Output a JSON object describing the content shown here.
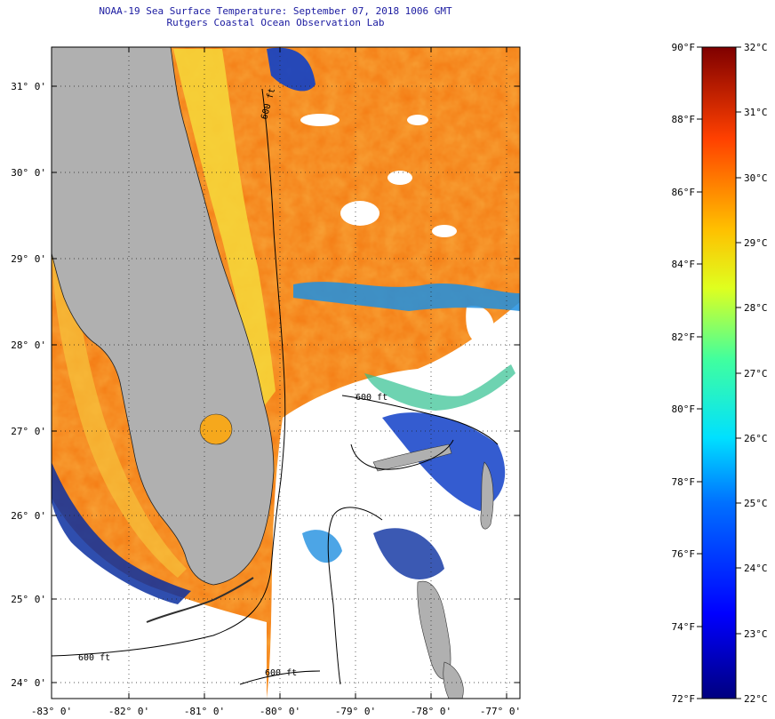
{
  "header": {
    "title": "NOAA-19 Sea Surface Temperature:  September 07, 2018 1006 GMT",
    "subtitle": "Rutgers Coastal Ocean Observation Lab"
  },
  "map": {
    "lat_labels": [
      "31° 0'",
      "30° 0'",
      "29° 0'",
      "28° 0'",
      "27° 0'",
      "26° 0'",
      "25° 0'",
      "24° 0'"
    ],
    "lon_labels": [
      "-83° 0'",
      "-82° 0'",
      "-81° 0'",
      "-80° 0'",
      "-79° 0'",
      "-78° 0'",
      "-77° 0'"
    ],
    "contour_labels": [
      "600 ft",
      "600 ft",
      "600 ft",
      "600 ft"
    ],
    "colors": {
      "land": "#b0b0b0",
      "cloud": "#ffffff",
      "warm": "#f47a12",
      "mid": "#f6a81c",
      "coastal": "#f6e03a",
      "cool": "#1040c8",
      "cold": "#000080"
    }
  },
  "colorbar": {
    "fahrenheit_labels": [
      "90°F",
      "88°F",
      "86°F",
      "84°F",
      "82°F",
      "80°F",
      "78°F",
      "76°F",
      "74°F",
      "72°F"
    ],
    "celsius_labels": [
      "32°C",
      "31°C",
      "30°C",
      "29°C",
      "28°C",
      "27°C",
      "26°C",
      "25°C",
      "24°C",
      "23°C",
      "22°C"
    ],
    "min_f": 72,
    "max_f": 90,
    "min_c": 22,
    "max_c": 32
  }
}
